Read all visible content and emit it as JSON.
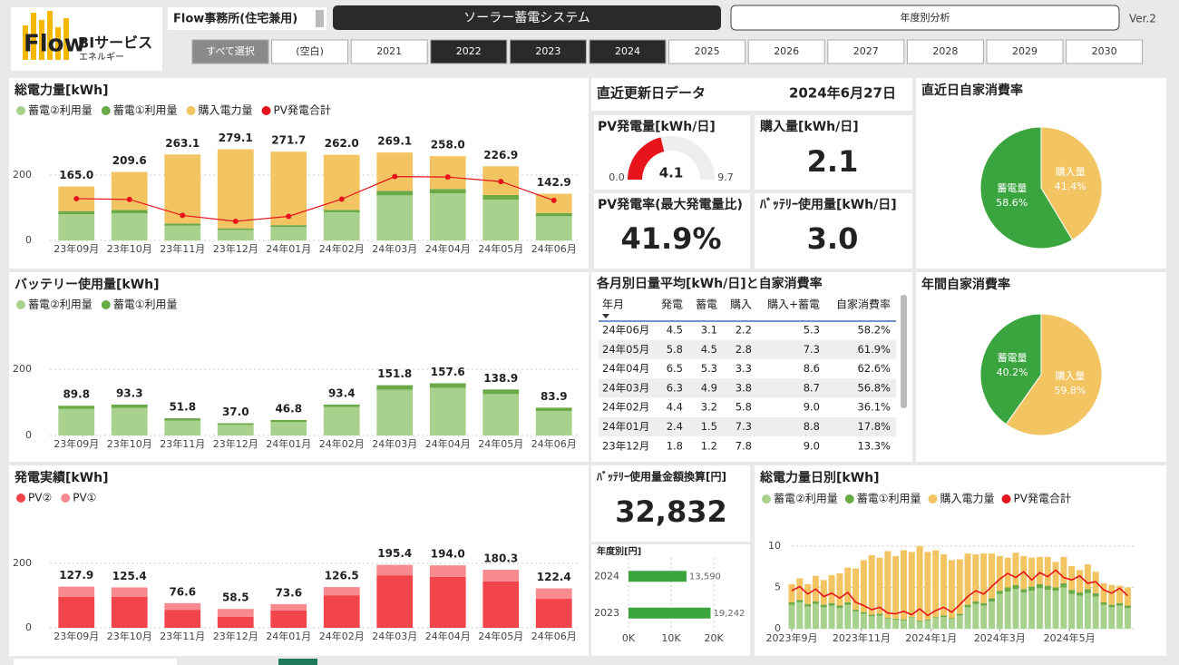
{
  "header": {
    "logo": "Flow",
    "service": "BIサービス",
    "sub": "エネルギー",
    "office": "Flow事務所(住宅兼用)",
    "system": "ソーラー蓄電システム",
    "tab": "年度別分析",
    "version": "Ver.2"
  },
  "filters": {
    "buttons": [
      {
        "label": "すべて選択",
        "selected": false
      },
      {
        "label": "(空白)",
        "selected": false
      },
      {
        "label": "2021",
        "selected": false
      },
      {
        "label": "2022",
        "selected": true
      },
      {
        "label": "2023",
        "selected": true
      },
      {
        "label": "2024",
        "selected": true
      },
      {
        "label": "2025",
        "selected": false
      },
      {
        "label": "2026",
        "selected": false
      },
      {
        "label": "2027",
        "selected": false
      },
      {
        "label": "2028",
        "selected": false
      },
      {
        "label": "2029",
        "selected": false
      },
      {
        "label": "2030",
        "selected": false
      }
    ]
  },
  "latest": {
    "title": "直近更新日データ",
    "date": "2024年6月27日",
    "purchase_title": "購入量[kWh/日]",
    "purchase": "2.1",
    "pv_rate_title": "PV発電率(最大発電量比)",
    "pv_rate": "41.9%",
    "battery_title": "ﾊﾞｯﾃﾘｰ使用量[kWh/日]",
    "battery": "3.0"
  },
  "money": {
    "title": "ﾊﾞｯﾃﾘｰ使用量金額換算[円]",
    "value": "32,832"
  },
  "table": {
    "title": "各月別日量平均[kWh/日]と自家消費率",
    "columns": [
      "年月",
      "発電",
      "蓄電",
      "購入",
      "購入+蓄電",
      "自家消費率"
    ],
    "rows": [
      [
        "24年06月",
        "4.5",
        "3.1",
        "2.2",
        "5.3",
        "58.2%"
      ],
      [
        "24年05月",
        "5.8",
        "4.5",
        "2.8",
        "7.3",
        "61.9%"
      ],
      [
        "24年04月",
        "6.5",
        "5.3",
        "3.3",
        "8.6",
        "62.6%"
      ],
      [
        "24年03月",
        "6.3",
        "4.9",
        "3.8",
        "8.7",
        "56.8%"
      ],
      [
        "24年02月",
        "4.4",
        "3.2",
        "5.8",
        "9.0",
        "36.1%"
      ],
      [
        "24年01月",
        "2.4",
        "1.5",
        "7.3",
        "8.8",
        "17.8%"
      ],
      [
        "23年12月",
        "1.8",
        "1.2",
        "7.8",
        "9.0",
        "13.3%"
      ]
    ]
  },
  "chart_data": [
    {
      "type": "bar",
      "title": "総電力量[kWh]",
      "stacked": true,
      "categories": [
        "23年09月",
        "23年10月",
        "23年11月",
        "23年12月",
        "24年01月",
        "24年02月",
        "24年03月",
        "24年04月",
        "24年05月",
        "24年06月"
      ],
      "series": [
        {
          "name": "蓄電②利用量",
          "color": "#a9d18e",
          "values": [
            80,
            83,
            45,
            32,
            41,
            86,
            138,
            144,
            125,
            74
          ]
        },
        {
          "name": "蓄電①利用量",
          "color": "#6aab48",
          "values": [
            9.8,
            10.3,
            6.8,
            5.0,
            5.8,
            7.4,
            13.8,
            13.6,
            13.9,
            9.9
          ]
        },
        {
          "name": "購入電力量",
          "color": "#f2c462",
          "values": [
            75.2,
            116.3,
            211.3,
            242.1,
            224.9,
            168.6,
            117.3,
            100.4,
            88.0,
            59.0
          ]
        },
        {
          "name": "PV発電合計",
          "color": "#e8141b",
          "type": "line",
          "values": [
            127.9,
            125.4,
            76.6,
            58.5,
            73.6,
            126.5,
            195.4,
            194.0,
            180.3,
            122.4
          ]
        }
      ],
      "totals": {
        "values": [
          165,
          209.6,
          263.1,
          279.1,
          271.7,
          262,
          269.1,
          258,
          226.9,
          142.9
        ],
        "value_labels": [
          "165.0",
          "209.6",
          "263.1",
          "279.1",
          "271.7",
          "262.0",
          "269.1",
          "258.0",
          "226.9",
          "142.9"
        ]
      },
      "ylim": [
        0,
        300
      ],
      "yticks": [
        0,
        200
      ],
      "grid": true
    },
    {
      "type": "bar",
      "title": "バッテリー使用量[kWh]",
      "stacked": true,
      "categories": [
        "23年09月",
        "23年10月",
        "23年11月",
        "23年12月",
        "24年01月",
        "24年02月",
        "24年03月",
        "24年04月",
        "24年05月",
        "24年06月"
      ],
      "series": [
        {
          "name": "蓄電②利用量",
          "color": "#a9d18e",
          "values": [
            80,
            83,
            45,
            32,
            41,
            86,
            138,
            144,
            125,
            74
          ]
        },
        {
          "name": "蓄電①利用量",
          "color": "#6aab48",
          "values": [
            9.8,
            10.3,
            6.8,
            5.0,
            5.8,
            7.4,
            13.8,
            13.6,
            13.9,
            9.9
          ]
        }
      ],
      "totals": {
        "values": [
          89.8,
          93.3,
          51.8,
          37,
          46.8,
          93.4,
          151.8,
          157.6,
          138.9,
          83.9
        ],
        "value_labels": [
          "89.8",
          "93.3",
          "51.8",
          "37.0",
          "46.8",
          "93.4",
          "151.8",
          "157.6",
          "138.9",
          "83.9"
        ]
      },
      "ylim": [
        0,
        300
      ],
      "yticks": [
        0,
        200
      ],
      "grid": true
    },
    {
      "type": "bar",
      "title": "発電実績[kWh]",
      "stacked": true,
      "categories": [
        "23年09月",
        "23年10月",
        "23年11月",
        "23年12月",
        "24年01月",
        "24年02月",
        "24年03月",
        "24年04月",
        "24年05月",
        "24年06月"
      ],
      "series": [
        {
          "name": "PV②",
          "color": "#f2444b",
          "values": [
            96,
            96,
            56,
            34,
            54,
            101,
            163,
            158,
            144,
            90
          ]
        },
        {
          "name": "PV①",
          "color": "#f78a8e",
          "values": [
            31.9,
            29.4,
            20.6,
            24.5,
            19.6,
            25.5,
            32.4,
            36,
            36.3,
            32.4
          ]
        }
      ],
      "totals": {
        "values": [
          127.9,
          125.4,
          76.6,
          58.5,
          73.6,
          126.5,
          195.4,
          194,
          180.3,
          122.4
        ],
        "value_labels": [
          "127.9",
          "125.4",
          "76.6",
          "58.5",
          "73.6",
          "126.5",
          "195.4",
          "194.0",
          "180.3",
          "122.4"
        ]
      },
      "ylim": [
        0,
        300
      ],
      "yticks": [
        0,
        200
      ],
      "grid": true
    },
    {
      "type": "bar",
      "title": "総電力量日別[kWh]",
      "stacked": true,
      "x": [
        0,
        7,
        14,
        21,
        28,
        35,
        42,
        49,
        56,
        63,
        70,
        77,
        84,
        91,
        98,
        105,
        112,
        119,
        126,
        133,
        140,
        147,
        154,
        161,
        168,
        175,
        182,
        189,
        196,
        203,
        210,
        217,
        224,
        231,
        238,
        245,
        252,
        259,
        266,
        273,
        280,
        287,
        294
      ],
      "series": [
        {
          "name": "蓄電②利用量",
          "color": "#a9d18e",
          "values": [
            2.9,
            3.2,
            2.7,
            3.0,
            2.6,
            2.8,
            2.5,
            2.9,
            2.1,
            1.8,
            1.5,
            1.6,
            1.2,
            1.1,
            1.0,
            1.3,
            0.9,
            1.0,
            1.3,
            1.4,
            1.2,
            1.6,
            2.6,
            3.0,
            2.8,
            3.3,
            4.2,
            4.5,
            4.8,
            4.4,
            4.6,
            4.9,
            4.7,
            4.6,
            5.0,
            4.2,
            4.0,
            4.3,
            3.9,
            2.9,
            2.6,
            2.8,
            2.5
          ]
        },
        {
          "name": "蓄電①利用量",
          "color": "#6aab48",
          "values": [
            0.3,
            0.3,
            0.3,
            0.3,
            0.3,
            0.3,
            0.3,
            0.3,
            0.2,
            0.2,
            0.2,
            0.2,
            0.1,
            0.1,
            0.1,
            0.1,
            0.1,
            0.1,
            0.1,
            0.2,
            0.1,
            0.2,
            0.3,
            0.3,
            0.3,
            0.4,
            0.4,
            0.5,
            0.5,
            0.4,
            0.5,
            0.5,
            0.5,
            0.4,
            0.5,
            0.5,
            0.4,
            0.5,
            0.4,
            0.3,
            0.3,
            0.3,
            0.3
          ]
        },
        {
          "name": "購入電力量",
          "color": "#f2c462",
          "values": [
            2.2,
            2.6,
            2.4,
            3.1,
            3.0,
            3.4,
            3.9,
            4.2,
            5.0,
            6.3,
            7.2,
            6.8,
            8.1,
            7.6,
            8.4,
            7.9,
            9.0,
            8.2,
            8.1,
            7.4,
            7.0,
            6.6,
            6.2,
            5.7,
            6.0,
            5.4,
            4.2,
            3.6,
            3.9,
            4.0,
            3.5,
            3.3,
            3.5,
            3.1,
            3.2,
            2.9,
            2.7,
            3.0,
            2.6,
            2.3,
            2.4,
            2.1,
            2.2
          ]
        },
        {
          "name": "PV発電合計",
          "color": "#e8141b",
          "type": "line",
          "values": [
            4.6,
            5.1,
            4.2,
            4.8,
            3.9,
            4.3,
            3.7,
            4.4,
            3.2,
            2.8,
            2.3,
            2.6,
            1.9,
            1.8,
            2.1,
            1.7,
            2.4,
            1.6,
            2.2,
            2.6,
            2.0,
            2.9,
            3.9,
            4.6,
            4.2,
            5.1,
            6.0,
            6.7,
            6.2,
            6.9,
            5.9,
            6.8,
            6.3,
            7.1,
            6.2,
            5.9,
            6.4,
            5.5,
            5.7,
            4.7,
            4.3,
            4.9,
            4.0
          ]
        }
      ],
      "xlim": [
        0,
        300
      ],
      "xticks": [
        {
          "value": 0,
          "label": "2023年9月"
        },
        {
          "value": 61,
          "label": "2023年11月"
        },
        {
          "value": 122,
          "label": "2024年1月"
        },
        {
          "value": 182,
          "label": "2024年3月"
        },
        {
          "value": 243,
          "label": "2024年5月"
        }
      ],
      "ylim": [
        0,
        13
      ],
      "yticks": [
        0,
        5,
        10
      ],
      "grid": true
    },
    {
      "type": "pie",
      "title": "直近日自家消費率",
      "categories": [
        "蓄電量",
        "購入量"
      ],
      "values": [
        58.6,
        41.4
      ],
      "value_labels": [
        "58.6%",
        "41.4%"
      ],
      "colors": [
        "#3aa53f",
        "#f2c462"
      ]
    },
    {
      "type": "pie",
      "title": "年間自家消費率",
      "categories": [
        "蓄電量",
        "購入量"
      ],
      "values": [
        40.2,
        59.8
      ],
      "value_labels": [
        "40.2%",
        "59.8%"
      ],
      "colors": [
        "#3aa53f",
        "#f2c462"
      ]
    },
    {
      "type": "gauge",
      "title": "PV発電量[kWh/日]",
      "value": 4.1,
      "min": {
        "value": 0,
        "label": "0.0"
      },
      "max": 9.7,
      "color": "#e8141b"
    },
    {
      "type": "bar",
      "orientation": "horizontal",
      "title": "年度別[円]",
      "categories": [
        "2024",
        "2023"
      ],
      "values": [
        13590,
        19242
      ],
      "value_labels": [
        "13,590",
        "19,242"
      ],
      "color": "#3aa53f",
      "xlim": [
        0,
        27000
      ],
      "xticks": [
        {
          "value": 0,
          "label": "0K"
        },
        {
          "value": 10000,
          "label": "10K"
        },
        {
          "value": 20000,
          "label": "20K"
        }
      ],
      "grid": true
    }
  ]
}
